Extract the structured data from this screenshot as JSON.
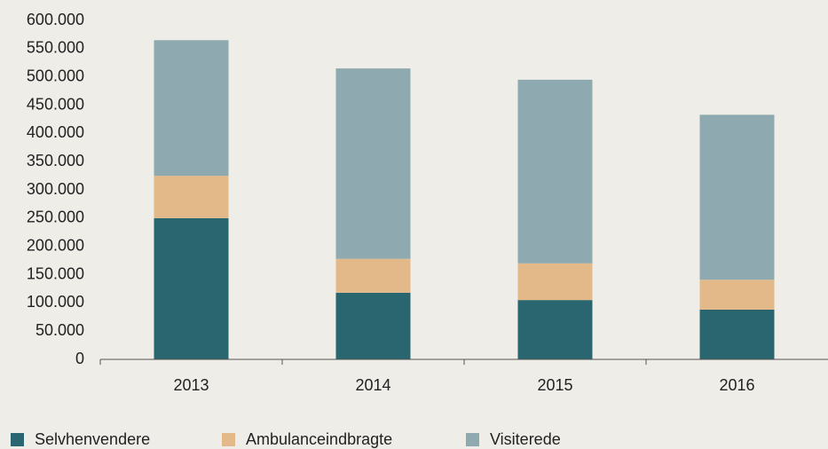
{
  "chart_data": {
    "type": "stacked_bar",
    "categories": [
      "2013",
      "2014",
      "2015",
      "2016"
    ],
    "series": [
      {
        "name": "Selvhenvendere",
        "color": "#2a6670",
        "values": [
          250000,
          118000,
          105000,
          88000
        ]
      },
      {
        "name": "Ambulanceindbragte",
        "color": "#e3b98a",
        "values": [
          75000,
          60000,
          65000,
          53000
        ]
      },
      {
        "name": "Visiterede",
        "color": "#8fa9b0",
        "values": [
          240000,
          337000,
          325000,
          292000
        ]
      }
    ],
    "ylim": [
      0,
      600000
    ],
    "yticks": [
      0,
      {
        "value": 50000,
        "label": "50.000"
      },
      {
        "value": 100000,
        "label": "100.000"
      },
      {
        "value": 150000,
        "label": "150.000"
      },
      {
        "value": 200000,
        "label": "200.000"
      },
      {
        "value": 250000,
        "label": "250.000"
      },
      {
        "value": 300000,
        "label": "300.000"
      },
      {
        "value": 350000,
        "label": "350.000"
      },
      {
        "value": 400000,
        "label": "400.000"
      },
      {
        "value": 450000,
        "label": "450.000"
      },
      {
        "value": 500000,
        "label": "500.000"
      },
      {
        "value": 550000,
        "label": "550.000"
      },
      {
        "value": 600000,
        "label": "600.000"
      }
    ],
    "grid": false,
    "legend": "bottom"
  }
}
